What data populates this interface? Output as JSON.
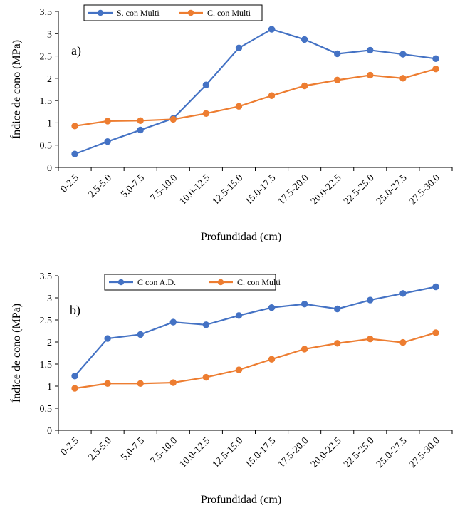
{
  "chart_data": [
    {
      "type": "line",
      "panel_label": "a)",
      "categories": [
        "0-2.5",
        "2.5-5.0",
        "5.0-7.5",
        "7.5-10.0",
        "10.0-12.5",
        "12.5-15.0",
        "15.0-17.5",
        "17.5-20.0",
        "20.0-22.5",
        "22.5-25.0",
        "25.0-27.5",
        "27.5-30.0"
      ],
      "series": [
        {
          "name": "S. con Multi",
          "color": "#4472C4",
          "values": [
            0.3,
            0.58,
            0.84,
            1.1,
            1.85,
            2.68,
            3.1,
            2.87,
            2.55,
            2.63,
            2.54,
            2.44
          ]
        },
        {
          "name": "C. con Multi",
          "color": "#ED7D31",
          "values": [
            0.93,
            1.04,
            1.05,
            1.08,
            1.21,
            1.37,
            1.61,
            1.83,
            1.96,
            2.07,
            2.0,
            2.21
          ]
        }
      ],
      "xlabel": "Profundidad (cm)",
      "ylabel": "Índice de cono (MPa)",
      "ylim": [
        0,
        3.5
      ],
      "yticks": [
        "0",
        "0.5",
        "1",
        "1.5",
        "2",
        "2.5",
        "3",
        "3.5"
      ],
      "grid": false,
      "legend_position": "top-left"
    },
    {
      "type": "line",
      "panel_label": "b)",
      "categories": [
        "0-2.5",
        "2.5-5.0",
        "5.0-7.5",
        "7.5-10.0",
        "10.0-12.5",
        "12.5-15.0",
        "15.0-17.5",
        "17.5-20.0",
        "20.0-22.5",
        "22.5-25.0",
        "25.0-27.5",
        "27.5-30.0"
      ],
      "series": [
        {
          "name": "C con A.D.",
          "color": "#4472C4",
          "values": [
            1.23,
            2.08,
            2.17,
            2.45,
            2.39,
            2.6,
            2.78,
            2.86,
            2.75,
            2.95,
            3.1,
            3.25
          ]
        },
        {
          "name": "C. con Multi",
          "color": "#ED7D31",
          "values": [
            0.95,
            1.06,
            1.06,
            1.08,
            1.2,
            1.37,
            1.61,
            1.84,
            1.97,
            2.07,
            1.99,
            2.21
          ]
        }
      ],
      "xlabel": "Profundidad (cm)",
      "ylabel": "Índice de cono (MPa)",
      "ylim": [
        0,
        3.5
      ],
      "yticks": [
        "0",
        "0.5",
        "1",
        "1.5",
        "2",
        "2.5",
        "3",
        "3.5"
      ],
      "grid": false,
      "legend_position": "top-left"
    }
  ]
}
